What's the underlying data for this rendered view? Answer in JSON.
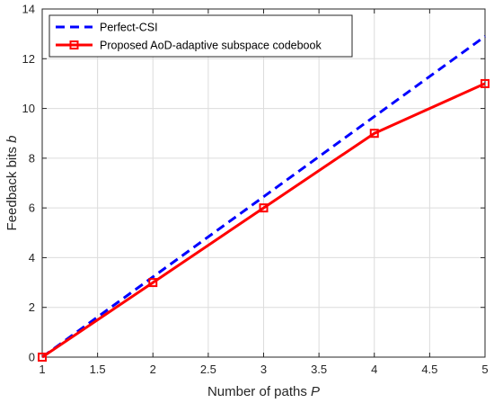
{
  "chart_data": {
    "type": "line",
    "title": "",
    "xlabel": "Number of paths",
    "xlabel_var": "P",
    "ylabel": "Feedback bits",
    "ylabel_var": "b",
    "xlim": [
      1,
      5
    ],
    "ylim": [
      0,
      14
    ],
    "xticks": [
      "1",
      "1.5",
      "2",
      "2.5",
      "3",
      "3.5",
      "4",
      "4.5",
      "5"
    ],
    "yticks": [
      "0",
      "2",
      "4",
      "6",
      "8",
      "10",
      "12",
      "14"
    ],
    "grid": true,
    "legend_position": "top-left",
    "series": [
      {
        "name": "Perfect-CSI",
        "style": "dashed",
        "marker": "none",
        "color": "#0000FF",
        "x": [
          1,
          5
        ],
        "y": [
          0,
          12.9
        ]
      },
      {
        "name": "Proposed AoD-adaptive subspace codebook",
        "style": "solid",
        "marker": "square",
        "color": "#FF0000",
        "x": [
          1,
          2,
          3,
          4,
          5
        ],
        "y": [
          0,
          3,
          6,
          9,
          11
        ]
      }
    ]
  }
}
